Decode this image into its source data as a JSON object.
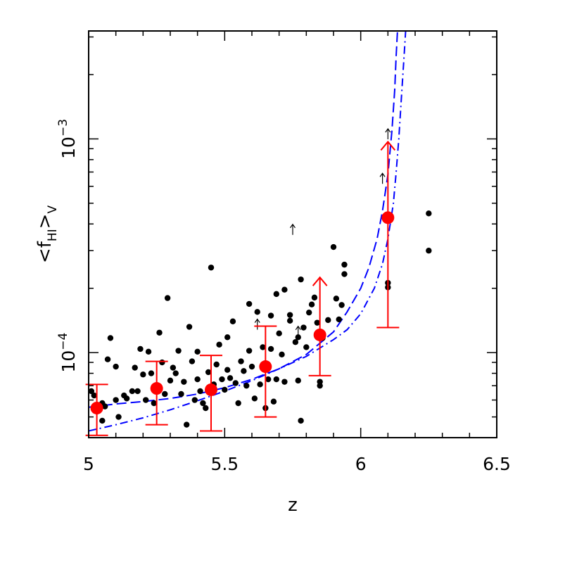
{
  "chart_data": {
    "type": "scatter",
    "xlabel": "z",
    "ylabel": {
      "main": "<f",
      "sub1": "HI",
      "mid": ">",
      "sub2": "V"
    },
    "xlim": [
      5.0,
      6.5
    ],
    "ylim": [
      4e-05,
      0.0032
    ],
    "yscale": "log",
    "x_ticks": [
      {
        "value": 5.0,
        "label": "5"
      },
      {
        "value": 5.5,
        "label": "5.5"
      },
      {
        "value": 6.0,
        "label": "6"
      },
      {
        "value": 6.5,
        "label": "6.5"
      }
    ],
    "y_ticks": [
      {
        "value": 0.0001,
        "base": "10",
        "exp": "−4"
      },
      {
        "value": 0.001,
        "base": "10",
        "exp": "−3"
      }
    ],
    "colors": {
      "points": "#000000",
      "binned": "#ff0000",
      "model": "#0000ff"
    },
    "series": [
      {
        "kind": "points",
        "color": "#000000",
        "points": [
          [
            5.01,
            6.6e-05
          ],
          [
            5.02,
            6.3e-05
          ],
          [
            5.03,
            5.3e-05
          ],
          [
            5.05,
            5.8e-05
          ],
          [
            5.05,
            4.8e-05
          ],
          [
            5.06,
            5.6e-05
          ],
          [
            5.07,
            9.3e-05
          ],
          [
            5.08,
            0.000117
          ],
          [
            5.1,
            8.6e-05
          ],
          [
            5.1,
            6e-05
          ],
          [
            5.11,
            5e-05
          ],
          [
            5.13,
            6.3e-05
          ],
          [
            5.14,
            6.1e-05
          ],
          [
            5.16,
            6.6e-05
          ],
          [
            5.17,
            8.5e-05
          ],
          [
            5.18,
            6.6e-05
          ],
          [
            5.19,
            0.000104
          ],
          [
            5.2,
            7.9e-05
          ],
          [
            5.21,
            6e-05
          ],
          [
            5.22,
            0.000101
          ],
          [
            5.23,
            8e-05
          ],
          [
            5.24,
            5.8e-05
          ],
          [
            5.25,
            6.9e-05
          ],
          [
            5.26,
            0.000124
          ],
          [
            5.27,
            9e-05
          ],
          [
            5.28,
            6.4e-05
          ],
          [
            5.29,
            0.00018
          ],
          [
            5.3,
            7.4e-05
          ],
          [
            5.31,
            8.5e-05
          ],
          [
            5.32,
            8e-05
          ],
          [
            5.33,
            0.000102
          ],
          [
            5.34,
            6.4e-05
          ],
          [
            5.35,
            7.3e-05
          ],
          [
            5.36,
            4.6e-05
          ],
          [
            5.37,
            0.000132
          ],
          [
            5.38,
            9.1e-05
          ],
          [
            5.39,
            6e-05
          ],
          [
            5.4,
            7.5e-05
          ],
          [
            5.4,
            0.000101
          ],
          [
            5.41,
            6.6e-05
          ],
          [
            5.42,
            5.8e-05
          ],
          [
            5.43,
            5.5e-05
          ],
          [
            5.44,
            8.1e-05
          ],
          [
            5.45,
            0.00025
          ],
          [
            5.46,
            7.1e-05
          ],
          [
            5.47,
            8.8e-05
          ],
          [
            5.48,
            0.000109
          ],
          [
            5.49,
            7.5e-05
          ],
          [
            5.5,
            6.7e-05
          ],
          [
            5.51,
            0.000118
          ],
          [
            5.51,
            8.3e-05
          ],
          [
            5.52,
            7.6e-05
          ],
          [
            5.53,
            0.00014
          ],
          [
            5.54,
            7.2e-05
          ],
          [
            5.55,
            5.8e-05
          ],
          [
            5.56,
            9.1e-05
          ],
          [
            5.57,
            8.2e-05
          ],
          [
            5.58,
            7e-05
          ],
          [
            5.59,
            0.000102
          ],
          [
            5.59,
            0.000169
          ],
          [
            5.6,
            8.6e-05
          ],
          [
            5.61,
            6.1e-05
          ],
          [
            5.62,
            0.000155
          ],
          [
            5.63,
            7.1e-05
          ],
          [
            5.64,
            0.000106
          ],
          [
            5.65,
            5.5e-05
          ],
          [
            5.66,
            7.5e-05
          ],
          [
            5.67,
            0.000104
          ],
          [
            5.67,
            0.000149
          ],
          [
            5.68,
            5.9e-05
          ],
          [
            5.69,
            0.000188
          ],
          [
            5.69,
            7.5e-05
          ],
          [
            5.7,
            0.000123
          ],
          [
            5.71,
            9.8e-05
          ],
          [
            5.72,
            0.000197
          ],
          [
            5.72,
            7.3e-05
          ],
          [
            5.74,
            0.00015
          ],
          [
            5.74,
            0.000141
          ],
          [
            5.76,
            0.000112
          ],
          [
            5.77,
            0.000118
          ],
          [
            5.77,
            7.4e-05
          ],
          [
            5.78,
            0.00022
          ],
          [
            5.78,
            4.8e-05
          ],
          [
            5.79,
            0.000131
          ],
          [
            5.8,
            0.000106
          ],
          [
            5.81,
            0.000154
          ],
          [
            5.82,
            0.000168
          ],
          [
            5.83,
            0.000181
          ],
          [
            5.84,
            0.000138
          ],
          [
            5.85,
            7e-05
          ],
          [
            5.85,
            7.3e-05
          ],
          [
            5.86,
            0.000117
          ],
          [
            5.88,
            0.000142
          ],
          [
            5.9,
            0.000312
          ],
          [
            5.91,
            0.000179
          ],
          [
            5.92,
            0.000143
          ],
          [
            5.93,
            0.000167
          ],
          [
            5.94,
            0.000233
          ],
          [
            5.94,
            0.000258
          ],
          [
            6.1,
            0.000202
          ],
          [
            6.1,
            0.000212
          ],
          [
            6.25,
            0.000448
          ],
          [
            6.25,
            0.0003
          ]
        ]
      },
      {
        "kind": "lower-limits",
        "color": "#000000",
        "points": [
          [
            5.75,
            0.000375
          ],
          [
            5.62,
            0.000135
          ],
          [
            5.77,
            0.000125
          ],
          [
            6.08,
            0.00065
          ],
          [
            6.1,
            0.00105
          ]
        ]
      },
      {
        "kind": "binned",
        "color": "#ff0000",
        "points": [
          {
            "x": 5.03,
            "y": 5.5e-05,
            "lo": 4.1e-05,
            "hi": 7.1e-05,
            "limit": false
          },
          {
            "x": 5.25,
            "y": 6.8e-05,
            "lo": 4.6e-05,
            "hi": 9.1e-05,
            "limit": false
          },
          {
            "x": 5.45,
            "y": 6.7e-05,
            "lo": 4.3e-05,
            "hi": 9.7e-05,
            "limit": false
          },
          {
            "x": 5.65,
            "y": 8.6e-05,
            "lo": 5e-05,
            "hi": 0.000133,
            "limit": false
          },
          {
            "x": 5.85,
            "y": 0.000121,
            "lo": 7.8e-05,
            "hi": 0.000225,
            "limit": true
          },
          {
            "x": 6.1,
            "y": 0.000428,
            "lo": 0.000131,
            "hi": 0.00097,
            "limit": true
          }
        ]
      },
      {
        "kind": "curve-dashed",
        "color": "#0000ff",
        "points": [
          [
            5.0,
            5.55e-05
          ],
          [
            5.1,
            5.75e-05
          ],
          [
            5.2,
            5.9e-05
          ],
          [
            5.3,
            6.1e-05
          ],
          [
            5.4,
            6.4e-05
          ],
          [
            5.5,
            6.85e-05
          ],
          [
            5.6,
            7.5e-05
          ],
          [
            5.7,
            8.4e-05
          ],
          [
            5.8,
            9.8e-05
          ],
          [
            5.9,
            0.000125
          ],
          [
            5.95,
            0.000155
          ],
          [
            6.0,
            0.0002
          ],
          [
            6.03,
            0.00025
          ],
          [
            6.06,
            0.00034
          ],
          [
            6.08,
            0.00046
          ],
          [
            6.1,
            0.00068
          ],
          [
            6.115,
            0.0011
          ],
          [
            6.125,
            0.0017
          ],
          [
            6.13,
            0.0024
          ],
          [
            6.135,
            0.0032
          ]
        ]
      },
      {
        "kind": "curve-dashdot",
        "color": "#0000ff",
        "points": [
          [
            5.0,
            4.3e-05
          ],
          [
            5.1,
            4.6e-05
          ],
          [
            5.2,
            4.95e-05
          ],
          [
            5.3,
            5.4e-05
          ],
          [
            5.4,
            5.95e-05
          ],
          [
            5.5,
            6.6e-05
          ],
          [
            5.6,
            7.4e-05
          ],
          [
            5.7,
            8.4e-05
          ],
          [
            5.8,
            9.6e-05
          ],
          [
            5.9,
            0.000115
          ],
          [
            5.95,
            0.000128
          ],
          [
            6.0,
            0.000152
          ],
          [
            6.05,
            0.0002
          ],
          [
            6.08,
            0.00026
          ],
          [
            6.1,
            0.00034
          ],
          [
            6.12,
            0.0005
          ],
          [
            6.13,
            0.00069
          ],
          [
            6.14,
            0.001
          ],
          [
            6.15,
            0.0016
          ],
          [
            6.16,
            0.0025
          ],
          [
            6.165,
            0.0032
          ]
        ]
      }
    ]
  }
}
